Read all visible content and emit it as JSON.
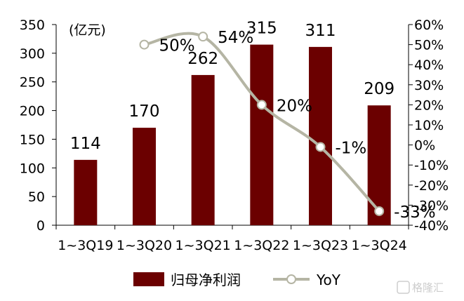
{
  "chart_data": {
    "type": "bar+line",
    "unit_label": "(亿元)",
    "categories": [
      "1~3Q19",
      "1~3Q20",
      "1~3Q21",
      "1~3Q22",
      "1~3Q23",
      "1~3Q24"
    ],
    "series": [
      {
        "name": "归母净利润",
        "type": "bar",
        "axis": "left",
        "color": "#6b0000",
        "values": [
          114,
          170,
          262,
          315,
          311,
          209
        ],
        "labels": [
          "114",
          "170",
          "262",
          "315",
          "311",
          "209"
        ]
      },
      {
        "name": "YoY",
        "type": "line",
        "axis": "right",
        "color": "#b5b5a4",
        "values": [
          null,
          0.5,
          0.54,
          0.2,
          -0.01,
          -0.33
        ],
        "labels": [
          "",
          "50%",
          "54%",
          "20%",
          "-1%",
          "-33%"
        ]
      }
    ],
    "y_left": {
      "min": 0,
      "max": 350,
      "step": 50,
      "ticks": [
        "0",
        "50",
        "100",
        "150",
        "200",
        "250",
        "300",
        "350"
      ]
    },
    "y_right": {
      "min": -0.4,
      "max": 0.6,
      "step": 0.1,
      "ticks": [
        "-40%",
        "-30%",
        "-20%",
        "-10%",
        "0%",
        "10%",
        "20%",
        "30%",
        "40%",
        "50%",
        "60%"
      ]
    },
    "grid": false,
    "legend": {
      "position": "bottom",
      "items": [
        "归母净利润",
        "YoY"
      ]
    }
  },
  "watermark": {
    "text": "格隆汇",
    "icon": "gelonghui-logo-icon"
  }
}
